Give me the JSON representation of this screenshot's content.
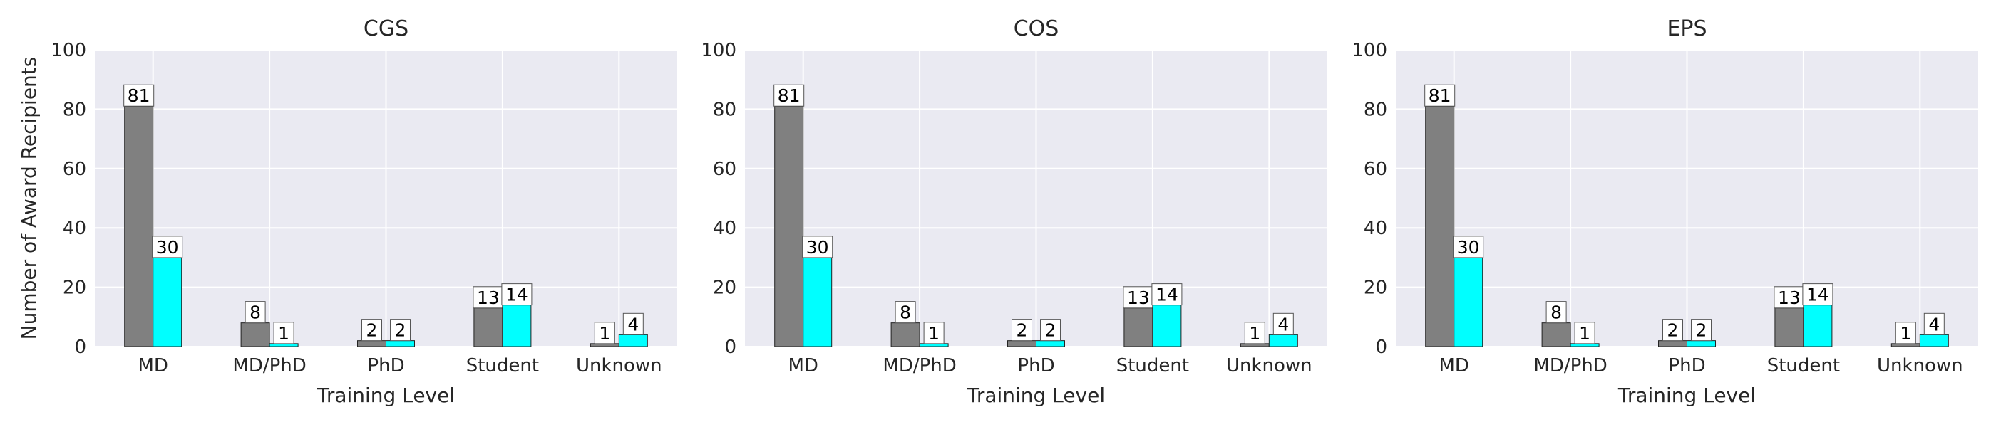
{
  "chart_data": [
    {
      "type": "bar",
      "title": "CGS",
      "xlabel": "Training Level",
      "ylabel": "Number of Award Recipients",
      "categories": [
        "MD",
        "MD/PhD",
        "PhD",
        "Student",
        "Unknown"
      ],
      "series": [
        {
          "values": [
            81,
            8,
            2,
            13,
            1
          ],
          "color": "#808080"
        },
        {
          "values": [
            30,
            1,
            2,
            14,
            4
          ],
          "color": "#00FFFF"
        }
      ],
      "ylim": [
        0,
        100
      ],
      "yticks": [
        0,
        20,
        40,
        60,
        80,
        100
      ],
      "grid": true,
      "background": "#EAEAF2"
    },
    {
      "type": "bar",
      "title": "COS",
      "xlabel": "Training Level",
      "ylabel": "",
      "categories": [
        "MD",
        "MD/PhD",
        "PhD",
        "Student",
        "Unknown"
      ],
      "series": [
        {
          "values": [
            81,
            8,
            2,
            13,
            1
          ],
          "color": "#808080"
        },
        {
          "values": [
            30,
            1,
            2,
            14,
            4
          ],
          "color": "#00FFFF"
        }
      ],
      "ylim": [
        0,
        100
      ],
      "yticks": [
        0,
        20,
        40,
        60,
        80,
        100
      ],
      "grid": true,
      "background": "#EAEAF2"
    },
    {
      "type": "bar",
      "title": "EPS",
      "xlabel": "Training Level",
      "ylabel": "",
      "categories": [
        "MD",
        "MD/PhD",
        "PhD",
        "Student",
        "Unknown"
      ],
      "series": [
        {
          "values": [
            81,
            8,
            2,
            13,
            1
          ],
          "color": "#808080"
        },
        {
          "values": [
            30,
            1,
            2,
            14,
            4
          ],
          "color": "#00FFFF"
        }
      ],
      "ylim": [
        0,
        100
      ],
      "yticks": [
        0,
        20,
        40,
        60,
        80,
        100
      ],
      "grid": true,
      "background": "#EAEAF2"
    }
  ]
}
